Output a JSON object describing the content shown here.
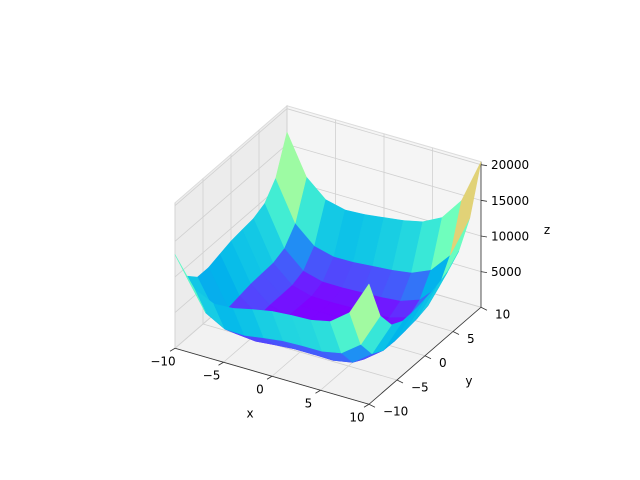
{
  "chart_data": {
    "type": "surface",
    "x": [
      -10,
      -8,
      -6,
      -4,
      -2,
      0,
      2,
      4,
      6,
      8,
      10
    ],
    "y": [
      -10,
      -8,
      -6,
      -4,
      -2,
      0,
      2,
      4,
      6,
      8,
      10
    ],
    "z": [
      [
        13130,
        9074,
        7794,
        7946,
        8570,
        9090,
        9314,
        9434,
        10026,
        12050,
        16850
      ],
      [
        8770,
        4426,
        2890,
        2818,
        3250,
        3610,
        3706,
        3730,
        4258,
        6250,
        11050
      ],
      [
        7250,
        2650,
        890,
        626,
        898,
        1130,
        1130,
        1090,
        1586,
        3578,
        8410
      ],
      [
        7226,
        2402,
        450,
        26,
        170,
        306,
        242,
        170,
        666,
        2690,
        7586
      ],
      [
        7738,
        2722,
        610,
        58,
        106,
        178,
        82,
        10,
        538,
        2626,
        7618
      ],
      [
        8210,
        3034,
        794,
        146,
        130,
        170,
        74,
        34,
        626,
        2810,
        7930
      ],
      [
        8450,
        3146,
        810,
        98,
        50,
        90,
        26,
        50,
        738,
        3050,
        8330
      ],
      [
        8650,
        3250,
        850,
        106,
        58,
        130,
        130,
        250,
        1066,
        3538,
        9010
      ],
      [
        9386,
        3922,
        1490,
        746,
        730,
        866,
        962,
        1210,
        2186,
        4850,
        10546
      ],
      [
        11618,
        6122,
        3690,
        2978,
        3026,
        3258,
        3482,
        3890,
        5058,
        7946,
        13898
      ],
      [
        16690,
        11194,
        8794,
        8146,
        8290,
        8650,
        9034,
        9634,
        11026,
        14170,
        20410
      ]
    ],
    "xlim": [
      -10,
      10
    ],
    "ylim": [
      -10,
      10
    ],
    "zlim": [
      0,
      20410
    ],
    "xticks": [
      {
        "value": -10,
        "label": "−10"
      },
      {
        "value": -5,
        "label": "−5"
      },
      0,
      5,
      10
    ],
    "yticks": [
      {
        "value": -10,
        "label": "−10"
      },
      {
        "value": -5,
        "label": "−5"
      },
      0,
      5,
      10
    ],
    "zticks": [
      5000,
      10000,
      15000,
      20000
    ],
    "xlabel": "x",
    "ylabel": "y",
    "zlabel": "z",
    "colormap": "rainbow",
    "grid": true
  }
}
